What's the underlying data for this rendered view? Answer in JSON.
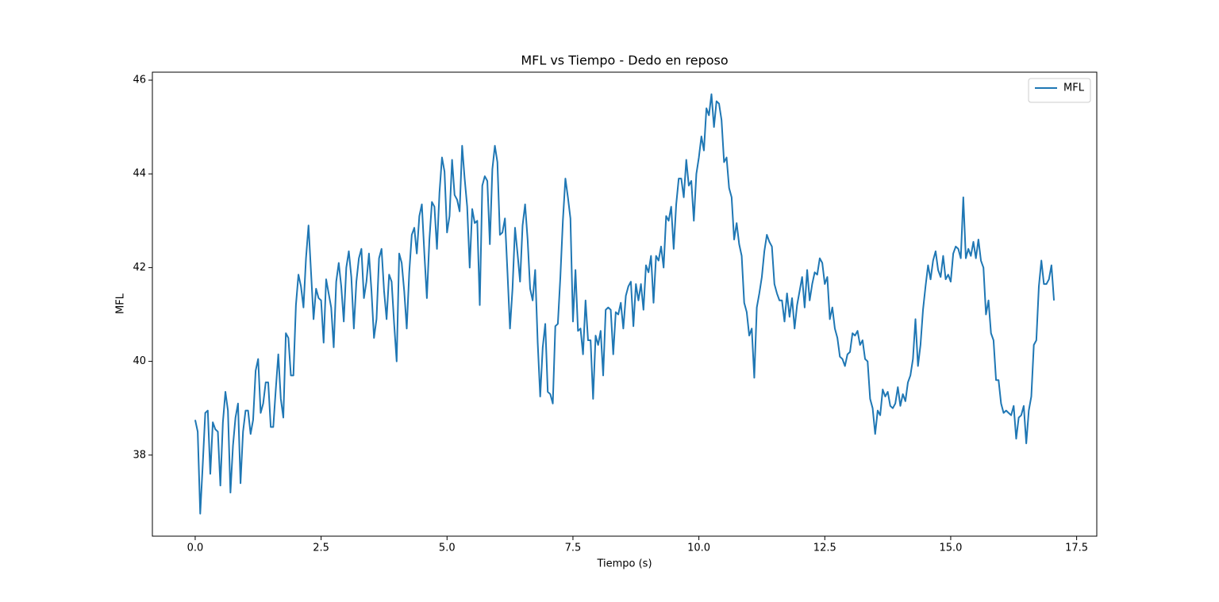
{
  "chart_data": {
    "type": "line",
    "title": "MFL vs Tiempo - Dedo en reposo",
    "xlabel": "Tiempo (s)",
    "ylabel": "MFL",
    "x": [
      0,
      0.05,
      0.1,
      0.15,
      0.2,
      0.25,
      0.3,
      0.35,
      0.4,
      0.45,
      0.5,
      0.55,
      0.6,
      0.65,
      0.7,
      0.75,
      0.8,
      0.85,
      0.9,
      0.95,
      1,
      1.05,
      1.1,
      1.15,
      1.2,
      1.25,
      1.3,
      1.35,
      1.4,
      1.45,
      1.5,
      1.55,
      1.6,
      1.65,
      1.7,
      1.75,
      1.8,
      1.85,
      1.9,
      1.95,
      2,
      2.05,
      2.1,
      2.15,
      2.2,
      2.25,
      2.3,
      2.35,
      2.4,
      2.45,
      2.5,
      2.55,
      2.6,
      2.65,
      2.7,
      2.75,
      2.8,
      2.85,
      2.9,
      2.95,
      3,
      3.05,
      3.1,
      3.15,
      3.2,
      3.25,
      3.3,
      3.35,
      3.4,
      3.45,
      3.5,
      3.55,
      3.6,
      3.65,
      3.7,
      3.75,
      3.8,
      3.85,
      3.9,
      3.95,
      4,
      4.05,
      4.1,
      4.15,
      4.2,
      4.25,
      4.3,
      4.35,
      4.4,
      4.45,
      4.5,
      4.55,
      4.6,
      4.65,
      4.7,
      4.75,
      4.8,
      4.85,
      4.9,
      4.95,
      5,
      5.05,
      5.1,
      5.15,
      5.2,
      5.25,
      5.3,
      5.35,
      5.4,
      5.45,
      5.5,
      5.55,
      5.6,
      5.65,
      5.7,
      5.75,
      5.8,
      5.85,
      5.9,
      5.95,
      6,
      6.05,
      6.1,
      6.15,
      6.2,
      6.25,
      6.3,
      6.35,
      6.4,
      6.45,
      6.5,
      6.55,
      6.6,
      6.65,
      6.7,
      6.75,
      6.8,
      6.85,
      6.9,
      6.95,
      7,
      7.05,
      7.1,
      7.15,
      7.2,
      7.25,
      7.3,
      7.35,
      7.4,
      7.45,
      7.5,
      7.55,
      7.6,
      7.65,
      7.7,
      7.75,
      7.8,
      7.85,
      7.9,
      7.95,
      8,
      8.05,
      8.1,
      8.15,
      8.2,
      8.25,
      8.3,
      8.35,
      8.4,
      8.45,
      8.5,
      8.55,
      8.6,
      8.65,
      8.7,
      8.75,
      8.8,
      8.85,
      8.9,
      8.95,
      9,
      9.05,
      9.1,
      9.15,
      9.2,
      9.25,
      9.3,
      9.35,
      9.4,
      9.45,
      9.5,
      9.55,
      9.6,
      9.65,
      9.7,
      9.75,
      9.8,
      9.85,
      9.9,
      9.95,
      10,
      10.05,
      10.1,
      10.15,
      10.2,
      10.25,
      10.3,
      10.35,
      10.4,
      10.45,
      10.5,
      10.55,
      10.6,
      10.65,
      10.7,
      10.75,
      10.8,
      10.85,
      10.9,
      10.95,
      11,
      11.05,
      11.1,
      11.15,
      11.2,
      11.25,
      11.3,
      11.35,
      11.4,
      11.45,
      11.5,
      11.55,
      11.6,
      11.65,
      11.7,
      11.75,
      11.8,
      11.85,
      11.9,
      11.95,
      12,
      12.05,
      12.1,
      12.15,
      12.2,
      12.25,
      12.3,
      12.35,
      12.4,
      12.45,
      12.5,
      12.55,
      12.6,
      12.65,
      12.7,
      12.75,
      12.8,
      12.85,
      12.9,
      12.95,
      13,
      13.05,
      13.1,
      13.15,
      13.2,
      13.25,
      13.3,
      13.35,
      13.4,
      13.45,
      13.5,
      13.55,
      13.6,
      13.65,
      13.7,
      13.75,
      13.8,
      13.85,
      13.9,
      13.95,
      14,
      14.05,
      14.1,
      14.15,
      14.2,
      14.25,
      14.3,
      14.35,
      14.4,
      14.45,
      14.5,
      14.55,
      14.6,
      14.65,
      14.7,
      14.75,
      14.8,
      14.85,
      14.9,
      14.95,
      15,
      15.05,
      15.1,
      15.15,
      15.2,
      15.25,
      15.3,
      15.35,
      15.4,
      15.45,
      15.5,
      15.55,
      15.6,
      15.65,
      15.7,
      15.75,
      15.8,
      15.85,
      15.9,
      15.95,
      16,
      16.05,
      16.1,
      16.15,
      16.2,
      16.25,
      16.3,
      16.35,
      16.4,
      16.45,
      16.5,
      16.55,
      16.6,
      16.65,
      16.7,
      16.75,
      16.8,
      16.85,
      16.9,
      16.95,
      17,
      17.05
    ],
    "series": [
      {
        "name": "MFL",
        "color": "#1f77b4",
        "values": [
          38.75,
          38.5,
          36.75,
          37.8,
          38.9,
          38.95,
          37.6,
          38.7,
          38.55,
          38.5,
          37.35,
          38.7,
          39.35,
          38.95,
          37.2,
          38.2,
          38.8,
          39.1,
          37.4,
          38.5,
          38.95,
          38.95,
          38.45,
          38.75,
          39.8,
          40.05,
          38.9,
          39.1,
          39.55,
          39.55,
          38.6,
          38.6,
          39.4,
          40.15,
          39.2,
          38.8,
          40.6,
          40.5,
          39.7,
          39.7,
          41.2,
          41.85,
          41.6,
          41.15,
          42.2,
          42.9,
          41.9,
          40.9,
          41.55,
          41.35,
          41.3,
          40.4,
          41.75,
          41.45,
          41.15,
          40.3,
          41.7,
          42.1,
          41.6,
          40.85,
          42.0,
          42.35,
          41.8,
          40.7,
          41.7,
          42.2,
          42.4,
          41.35,
          41.7,
          42.3,
          41.5,
          40.5,
          40.9,
          42.2,
          42.4,
          41.5,
          40.9,
          41.85,
          41.7,
          40.8,
          40.0,
          42.3,
          42.1,
          41.5,
          40.7,
          41.9,
          42.7,
          42.85,
          42.3,
          43.1,
          43.35,
          42.3,
          41.35,
          42.6,
          43.4,
          43.3,
          42.4,
          43.6,
          44.35,
          44.05,
          42.75,
          43.1,
          44.3,
          43.55,
          43.45,
          43.2,
          44.6,
          43.9,
          43.3,
          42.0,
          43.25,
          42.95,
          43.0,
          41.2,
          43.75,
          43.95,
          43.85,
          42.5,
          44.1,
          44.6,
          44.25,
          42.7,
          42.75,
          43.05,
          41.9,
          40.7,
          41.55,
          42.85,
          42.3,
          41.7,
          42.9,
          43.35,
          42.6,
          41.55,
          41.3,
          41.95,
          40.4,
          39.25,
          40.3,
          40.8,
          39.35,
          39.3,
          39.1,
          40.75,
          40.8,
          41.8,
          43.0,
          43.9,
          43.5,
          43.05,
          40.85,
          41.95,
          40.65,
          40.7,
          40.15,
          41.3,
          40.45,
          40.45,
          39.2,
          40.55,
          40.35,
          40.65,
          39.7,
          41.1,
          41.15,
          41.1,
          40.15,
          41.05,
          41.0,
          41.25,
          40.7,
          41.4,
          41.6,
          41.7,
          40.75,
          41.65,
          41.3,
          41.65,
          41.1,
          42.05,
          41.9,
          42.25,
          41.25,
          42.25,
          42.15,
          42.45,
          42.0,
          43.1,
          43.0,
          43.3,
          42.4,
          43.35,
          43.9,
          43.9,
          43.5,
          44.3,
          43.75,
          43.85,
          43.0,
          44.0,
          44.35,
          44.8,
          44.5,
          45.4,
          45.25,
          45.7,
          45.0,
          45.55,
          45.5,
          45.15,
          44.25,
          44.35,
          43.7,
          43.5,
          42.6,
          42.95,
          42.5,
          42.25,
          41.25,
          41.05,
          40.55,
          40.7,
          39.65,
          41.15,
          41.45,
          41.8,
          42.35,
          42.7,
          42.55,
          42.45,
          41.65,
          41.45,
          41.3,
          41.3,
          40.85,
          41.45,
          40.95,
          41.35,
          40.7,
          41.2,
          41.5,
          41.8,
          41.15,
          41.95,
          41.3,
          41.65,
          41.9,
          41.85,
          42.2,
          42.1,
          41.65,
          41.8,
          40.9,
          41.15,
          40.7,
          40.5,
          40.1,
          40.05,
          39.9,
          40.15,
          40.2,
          40.6,
          40.55,
          40.65,
          40.35,
          40.45,
          40.05,
          40.0,
          39.2,
          39.0,
          38.45,
          38.95,
          38.85,
          39.4,
          39.25,
          39.35,
          39.05,
          39.0,
          39.1,
          39.45,
          39.05,
          39.3,
          39.15,
          39.55,
          39.7,
          40.05,
          40.9,
          39.9,
          40.35,
          41.1,
          41.6,
          42.05,
          41.75,
          42.15,
          42.35,
          41.95,
          41.8,
          42.25,
          41.75,
          41.85,
          41.7,
          42.3,
          42.45,
          42.4,
          42.2,
          43.5,
          42.2,
          42.4,
          42.25,
          42.55,
          42.2,
          42.6,
          42.15,
          42.0,
          41.0,
          41.3,
          40.6,
          40.45,
          39.6,
          39.6,
          39.1,
          38.9,
          38.95,
          38.9,
          38.85,
          39.05,
          38.35,
          38.8,
          38.85,
          39.05,
          38.25,
          38.95,
          39.25,
          40.35,
          40.45,
          41.6,
          42.15,
          41.65,
          41.65,
          41.75,
          42.05,
          41.3
        ]
      }
    ],
    "xlim": [
      -0.85,
      17.9
    ],
    "ylim": [
      36.27,
      46.17
    ],
    "xticks": [
      {
        "value": 0,
        "label": "0.0"
      },
      2.5,
      {
        "value": 5,
        "label": "5.0"
      },
      7.5,
      {
        "value": 10,
        "label": "10.0"
      },
      12.5,
      {
        "value": 15,
        "label": "15.0"
      },
      17.5
    ],
    "yticks": [
      38,
      40,
      42,
      44,
      46
    ],
    "legend": "upper right",
    "grid": false
  }
}
